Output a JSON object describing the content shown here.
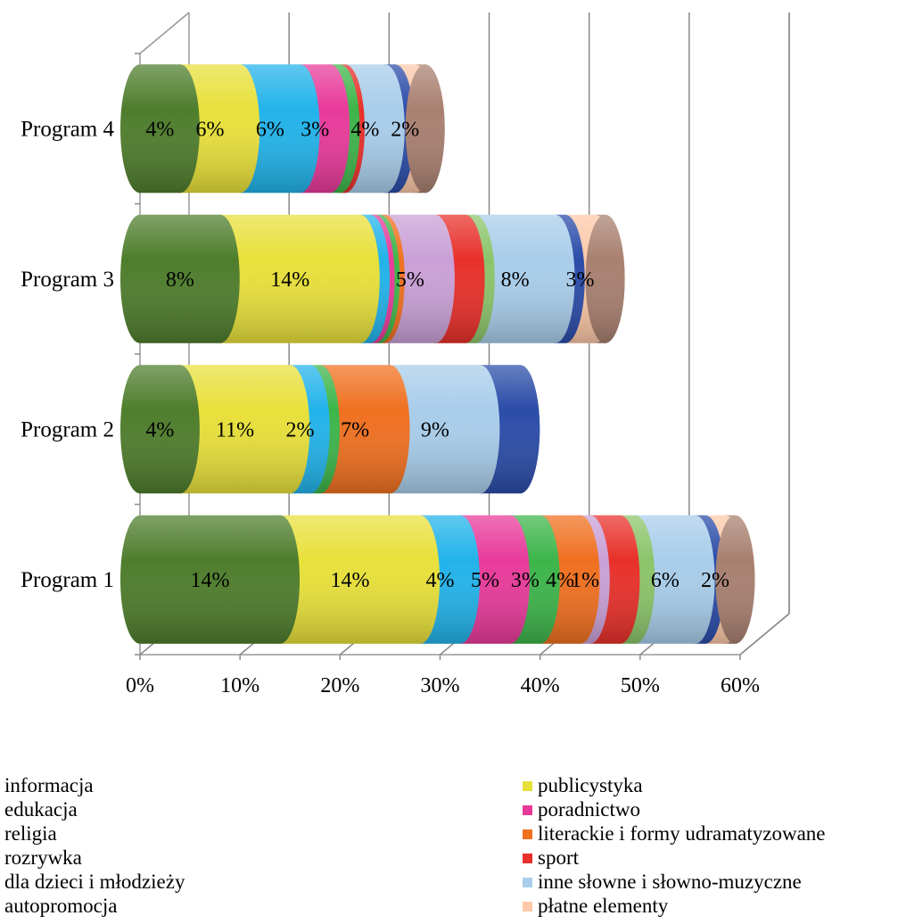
{
  "chart_data": {
    "type": "bar",
    "orientation": "horizontal",
    "stacked": true,
    "shape": "3d-cylinder",
    "categories": [
      "Program 1",
      "Program 2",
      "Program 3",
      "Program 4"
    ],
    "xlim": [
      0,
      60
    ],
    "x_tick_labels": [
      "0%",
      "10%",
      "20%",
      "30%",
      "40%",
      "50%",
      "60%"
    ],
    "grid": true,
    "legend_placement": "bottom",
    "series": [
      {
        "name": "informacja",
        "color": "#4e7d2c",
        "values": [
          14.0,
          4.0,
          8.0,
          4.0
        ],
        "labels": [
          "14%",
          "4%",
          "8%",
          "4%"
        ]
      },
      {
        "name": "publicystyka",
        "color": "#e8e03a",
        "values": [
          14.0,
          11.0,
          14.0,
          6.0
        ],
        "labels": [
          "14%",
          "11%",
          "14%",
          "6%"
        ]
      },
      {
        "name": "edukacja",
        "color": "#22b3ea",
        "values": [
          4.0,
          2.0,
          1.0,
          6.0
        ],
        "labels": [
          "4%",
          "2%",
          "",
          "6%"
        ]
      },
      {
        "name": "poradnictwo",
        "color": "#e83a9a",
        "values": [
          5.0,
          0,
          0.5,
          3.0
        ],
        "labels": [
          "5%",
          "",
          "",
          "3%"
        ]
      },
      {
        "name": "religia",
        "color": "#3db54a",
        "values": [
          3.0,
          1.0,
          0.5,
          1.0
        ],
        "labels": [
          "3%",
          "",
          "",
          ""
        ]
      },
      {
        "name": "literackie i formy udramatyzowane",
        "color": "#f07020",
        "values": [
          4.0,
          7.0,
          0.5,
          0
        ],
        "labels": [
          "4%",
          "7%",
          "",
          ""
        ]
      },
      {
        "name": "rozrywka",
        "color": "#c9a0d6",
        "values": [
          1.0,
          0,
          5.0,
          0
        ],
        "labels": [
          "1%",
          "",
          "5%",
          ""
        ]
      },
      {
        "name": "sport",
        "color": "#e8302a",
        "values": [
          3.0,
          0,
          3.0,
          0.5
        ],
        "labels": [
          "",
          "",
          "",
          ""
        ]
      },
      {
        "name": "dla dzieci i młodzieży",
        "color": "#8cc46a",
        "values": [
          1.5,
          0,
          1.0,
          0
        ],
        "labels": [
          "",
          "",
          "",
          ""
        ]
      },
      {
        "name": "inne słowne i słowno-muzyczne",
        "color": "#a9cdea",
        "values": [
          6.0,
          9.0,
          8.0,
          4.0
        ],
        "labels": [
          "6%",
          "9%",
          "8%",
          "4%"
        ]
      },
      {
        "name": "autopromocja",
        "color": "#2b4ca8",
        "values": [
          1.0,
          4.0,
          1.0,
          1.0
        ],
        "labels": [
          "",
          "",
          "",
          ""
        ]
      },
      {
        "name": "płatne elementy",
        "color": "#fcc8a8",
        "values": [
          2.0,
          0,
          3.0,
          2.0
        ],
        "labels": [
          "2%",
          "",
          "3%",
          "2%"
        ]
      },
      {
        "name": "",
        "color": "#a88070",
        "values": [
          1.0,
          0,
          1.0,
          1.0
        ],
        "labels": [
          "",
          "",
          "",
          ""
        ]
      }
    ],
    "legend": {
      "left": [
        {
          "label": "informacja",
          "color": "#4e7d2c"
        },
        {
          "label": "edukacja",
          "color": "#22b3ea"
        },
        {
          "label": "religia",
          "color": "#3db54a"
        },
        {
          "label": "rozrywka",
          "color": "#c9a0d6"
        },
        {
          "label": "dla dzieci i młodzieży",
          "color": "#8cc46a"
        },
        {
          "label": "autopromocja",
          "color": "#2b4ca8"
        }
      ],
      "right": [
        {
          "label": "publicystyka",
          "color": "#e8e03a"
        },
        {
          "label": "poradnictwo",
          "color": "#e83a9a"
        },
        {
          "label": "literackie i formy udramatyzowane",
          "color": "#f07020"
        },
        {
          "label": "sport",
          "color": "#e8302a"
        },
        {
          "label": "inne słowne i słowno-muzyczne",
          "color": "#a9cdea"
        },
        {
          "label": "płatne elementy",
          "color": "#fcc8a8"
        }
      ]
    }
  }
}
